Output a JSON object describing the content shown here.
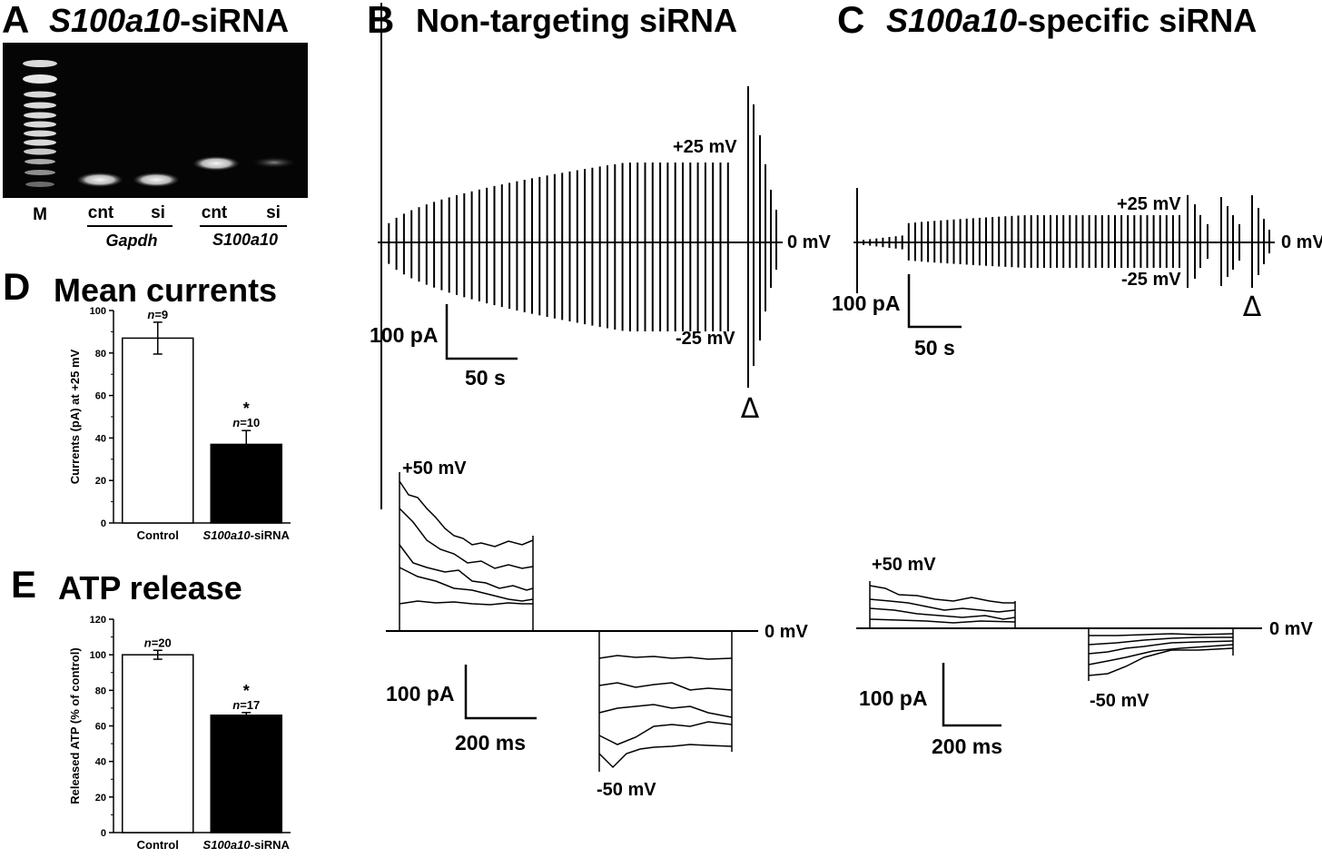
{
  "panelA": {
    "letter": "A",
    "title_italic": "S100a10",
    "title_rest": "-siRNA",
    "marker_label": "M",
    "lane_labels": [
      "cnt",
      "si",
      "cnt",
      "si"
    ],
    "gene_labels": [
      "Gapdh",
      "S100a10"
    ]
  },
  "panelB": {
    "letter": "B",
    "title": "Non-targeting siRNA",
    "top_trace": {
      "v_pos": "+25 mV",
      "v_zero": "0 mV",
      "v_neg": "-25 mV",
      "scale_y": "100 pA",
      "scale_x": "50 s",
      "marker": "Δ"
    },
    "bottom_trace": {
      "v_pos": "+50 mV",
      "v_zero": "0 mV",
      "v_neg": "-50 mV",
      "scale_y": "100 pA",
      "scale_x": "200 ms"
    }
  },
  "panelC": {
    "letter": "C",
    "title_italic": "S100a10",
    "title_rest": "-specific siRNA",
    "top_trace": {
      "v_pos": "+25 mV",
      "v_zero": "0 mV",
      "v_neg": "-25 mV",
      "scale_y": "100 pA",
      "scale_x": "50 s",
      "marker": "Δ"
    },
    "bottom_trace": {
      "v_pos": "+50 mV",
      "v_zero": "0 mV",
      "v_neg": "-50 mV",
      "scale_y": "100 pA",
      "scale_x": "200 ms"
    }
  },
  "panelD": {
    "letter": "D",
    "title": "Mean currents",
    "chart_data": {
      "type": "bar",
      "ylabel": "Currents (pA) at +25 mV",
      "ylim": [
        0,
        100
      ],
      "yticks": [
        0,
        20,
        40,
        60,
        80,
        100
      ],
      "categories": [
        "Control",
        "S100a10-siRNA"
      ],
      "category_italic": [
        "",
        "S100a10"
      ],
      "category_rest": [
        "Control",
        "-siRNA"
      ],
      "values": [
        87,
        37
      ],
      "errors": [
        7.5,
        6.5
      ],
      "n_labels": [
        "9",
        "10"
      ],
      "significance": [
        "",
        "*"
      ],
      "bar_colors": [
        "#ffffff",
        "#000000"
      ]
    }
  },
  "panelE": {
    "letter": "E",
    "title": "ATP release",
    "chart_data": {
      "type": "bar",
      "ylabel": "Released ATP (% of control)",
      "ylim": [
        0,
        120
      ],
      "yticks": [
        0,
        20,
        40,
        60,
        80,
        100,
        120
      ],
      "categories": [
        "Control",
        "S100a10-siRNA"
      ],
      "category_italic": [
        "",
        "S100a10"
      ],
      "category_rest": [
        "Control",
        "-siRNA"
      ],
      "values": [
        100,
        66
      ],
      "errors": [
        2.5,
        1.5
      ],
      "n_labels": [
        "20",
        "17"
      ],
      "significance": [
        "",
        "*"
      ],
      "bar_colors": [
        "#ffffff",
        "#000000"
      ]
    }
  }
}
